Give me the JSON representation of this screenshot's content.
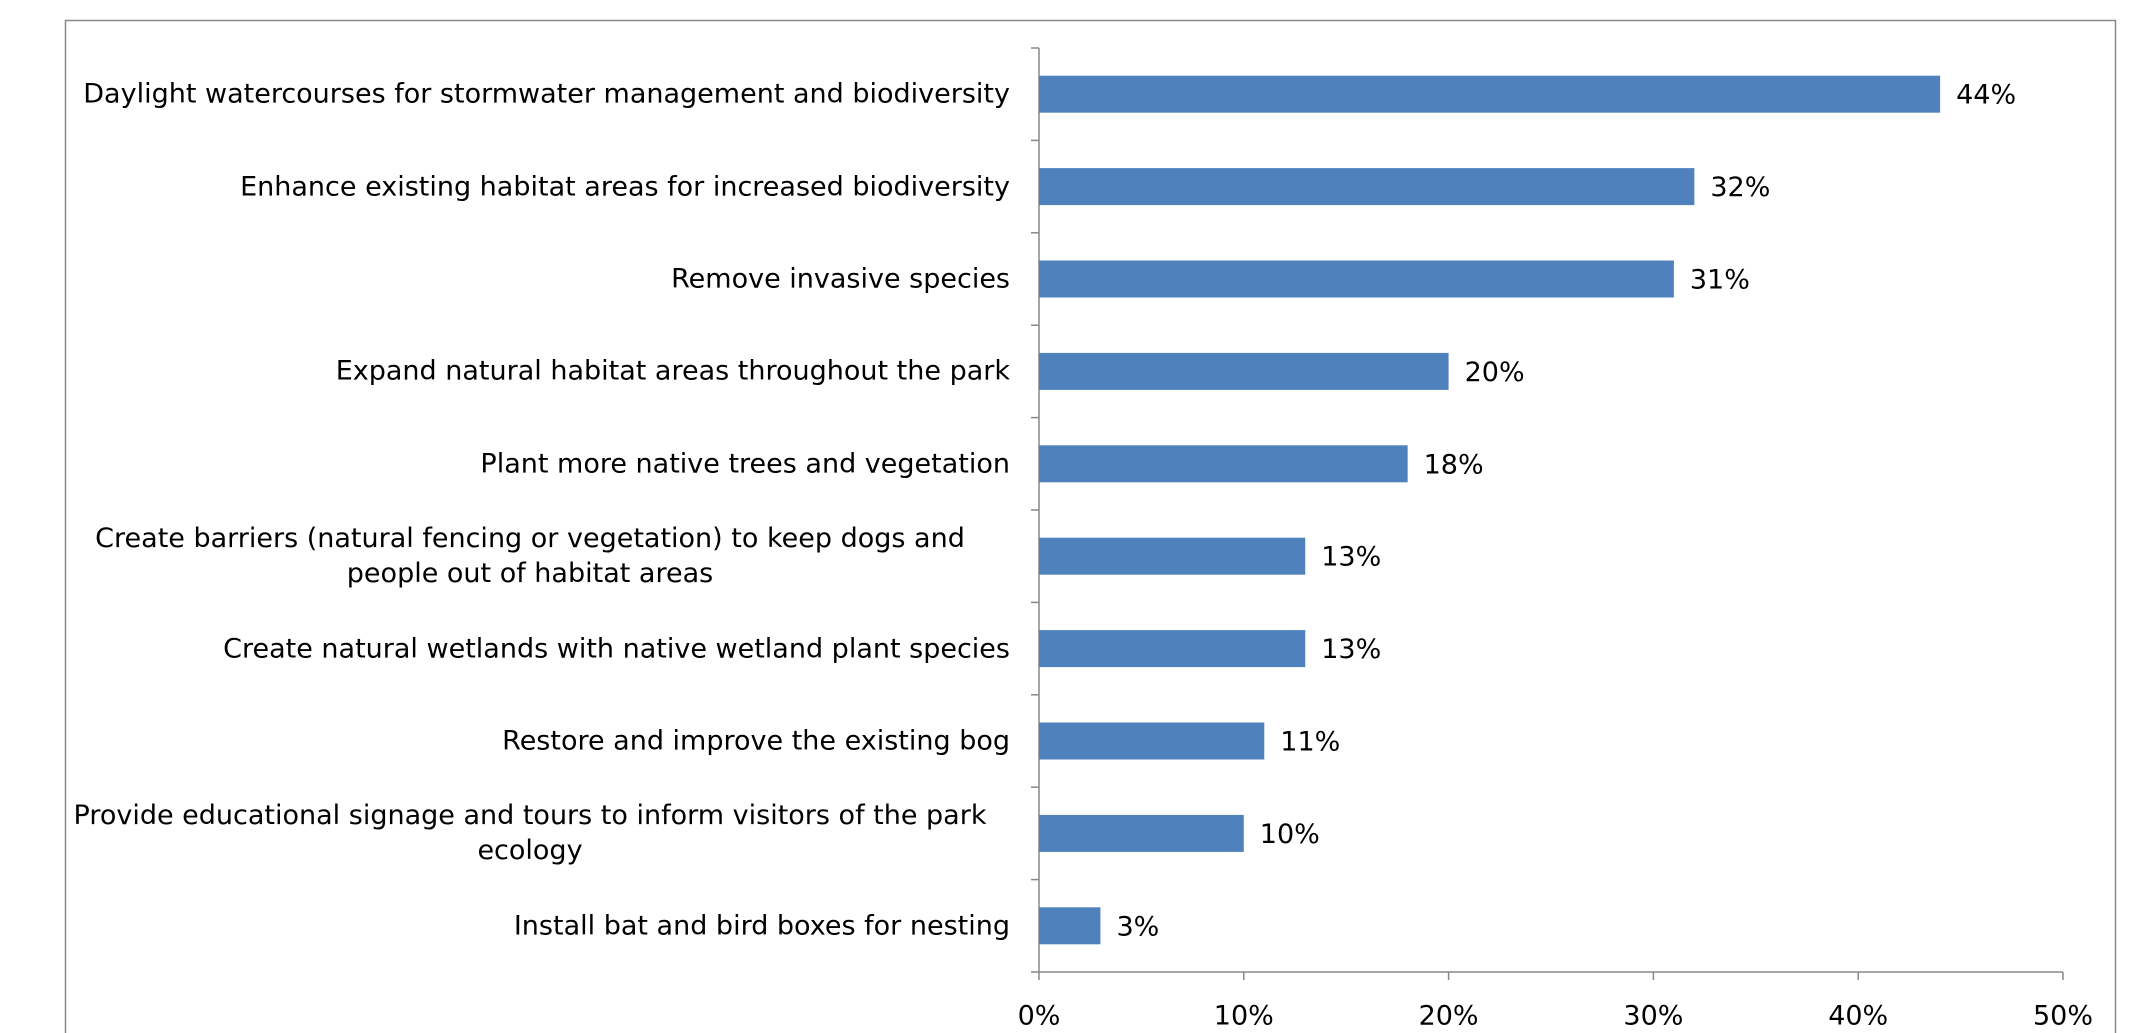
{
  "chart_data": {
    "type": "bar",
    "orientation": "horizontal",
    "categories": [
      "Daylight watercourses for stormwater management and biodiversity",
      "Enhance existing habitat areas for increased biodiversity",
      "Remove invasive species",
      "Expand natural habitat areas throughout the park",
      "Plant more native trees and vegetation",
      "Create barriers (natural fencing or vegetation) to keep dogs and people out of habitat areas",
      "Create natural wetlands with native wetland plant species",
      "Restore and improve the existing bog",
      "Provide educational signage and tours to inform visitors of the park ecology",
      "Install bat and bird boxes for nesting"
    ],
    "values": [
      44,
      32,
      31,
      20,
      18,
      13,
      13,
      11,
      10,
      3
    ],
    "value_labels": [
      "44%",
      "32%",
      "31%",
      "20%",
      "18%",
      "13%",
      "13%",
      "11%",
      "10%",
      "3%"
    ],
    "color": "#4f81bd",
    "xlim": [
      0,
      50
    ],
    "xticks": [
      {
        "value": 0,
        "label": "0%"
      },
      {
        "value": 10,
        "label": "10%"
      },
      {
        "value": 20,
        "label": "20%"
      },
      {
        "value": 30,
        "label": "30%"
      },
      {
        "value": 40,
        "label": "40%"
      },
      {
        "value": 50,
        "label": "50%"
      }
    ],
    "grid": false
  }
}
